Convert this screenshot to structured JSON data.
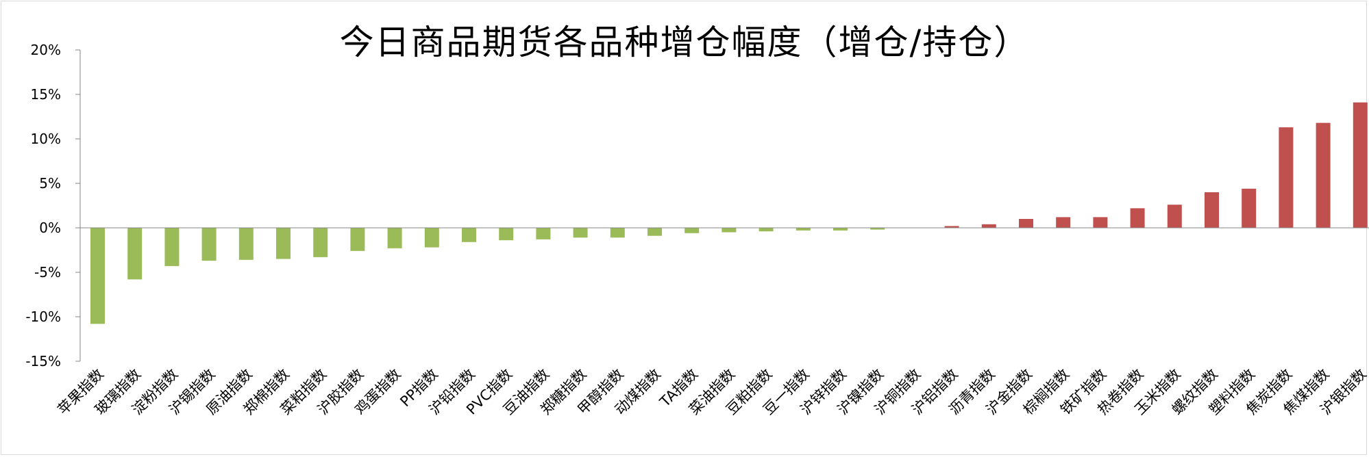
{
  "chart_data": {
    "type": "bar",
    "title": "今日商品期货各品种增仓幅度（增仓/持仓）",
    "xlabel": "",
    "ylabel": "",
    "ylim": [
      -15,
      20
    ],
    "yticks": [
      20,
      15,
      10,
      5,
      0,
      -5,
      -10,
      -15
    ],
    "ytick_labels": [
      "20%",
      "15%",
      "10%",
      "5%",
      "0%",
      "-5%",
      "-10%",
      "-15%"
    ],
    "grid": false,
    "legend": "none",
    "colors": {
      "negative": "#9bbb59",
      "positive": "#c0504d"
    },
    "categories": [
      "苹果指数",
      "玻璃指数",
      "淀粉指数",
      "沪锡指数",
      "原油指数",
      "郑棉指数",
      "菜粕指数",
      "沪胶指数",
      "鸡蛋指数",
      "PP指数",
      "沪铅指数",
      "PVC指数",
      "豆油指数",
      "郑糖指数",
      "甲醇指数",
      "动煤指数",
      "TA指数",
      "菜油指数",
      "豆粕指数",
      "豆一指数",
      "沪锌指数",
      "沪镍指数",
      "沪铜指数",
      "沪铝指数",
      "沥青指数",
      "沪金指数",
      "棕榈指数",
      "铁矿指数",
      "热卷指数",
      "玉米指数",
      "螺纹指数",
      "塑料指数",
      "焦炭指数",
      "焦煤指数",
      "沪银指数"
    ],
    "values": [
      -10.8,
      -5.8,
      -4.3,
      -3.7,
      -3.6,
      -3.5,
      -3.3,
      -2.6,
      -2.3,
      -2.2,
      -1.6,
      -1.4,
      -1.3,
      -1.1,
      -1.1,
      -0.9,
      -0.6,
      -0.5,
      -0.4,
      -0.3,
      -0.3,
      -0.2,
      0.0,
      0.2,
      0.4,
      1.0,
      1.2,
      1.2,
      2.2,
      2.6,
      4.0,
      4.4,
      11.3,
      11.8,
      14.1
    ]
  }
}
